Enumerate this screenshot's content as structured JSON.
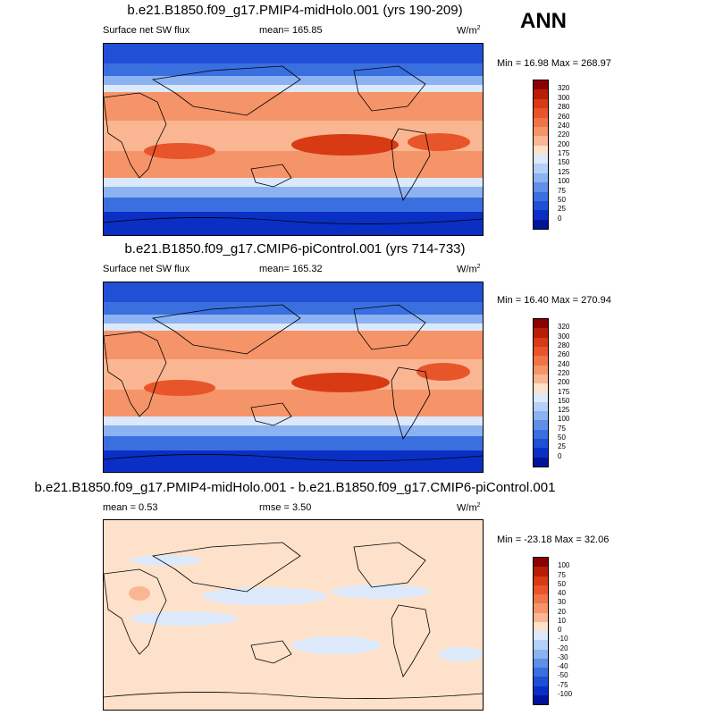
{
  "season": "ANN",
  "units_main": "W/m",
  "units_sup": "2",
  "panels": [
    {
      "title": "b.e21.B1850.f09_g17.PMIP4-midHolo.001 (yrs 190-209)",
      "left_label": "Surface net SW flux",
      "center_label": "mean= 165.85",
      "minmax": "Min =  16.98 Max = 268.97"
    },
    {
      "title": "b.e21.B1850.f09_g17.CMIP6-piControl.001 (yrs 714-733)",
      "left_label": "Surface net SW flux",
      "center_label": "mean= 165.32",
      "minmax": "Min =  16.40 Max = 270.94"
    },
    {
      "title": "b.e21.B1850.f09_g17.PMIP4-midHolo.001 - b.e21.B1850.f09_g17.CMIP6-piControl.001",
      "left_label": "mean =    0.53",
      "center_label": "rmse =    3.50",
      "minmax": "Min = -23.18 Max =  32.06"
    }
  ],
  "chart_data": [
    {
      "type": "heatmap",
      "title": "b.e21.B1850.f09_g17.PMIP4-midHolo.001 (yrs 190-209)",
      "variable": "Surface net SW flux",
      "units": "W/m2",
      "mean": 165.85,
      "min": 16.98,
      "max": 268.97,
      "colorbar_levels": [
        "320",
        "300",
        "280",
        "260",
        "240",
        "220",
        "200",
        "175",
        "150",
        "125",
        "100",
        "75",
        "50",
        "25",
        "0"
      ],
      "colorbar_colors": [
        "#8b0000",
        "#b81d05",
        "#d83a13",
        "#e8552a",
        "#ef7448",
        "#f59468",
        "#fab692",
        "#fde1cb",
        "#dbe9fb",
        "#b5d0f8",
        "#8cb2f2",
        "#5f8fe8",
        "#3a6fe0",
        "#1f4fd5",
        "#0a2fc4",
        "#00149a"
      ]
    },
    {
      "type": "heatmap",
      "title": "b.e21.B1850.f09_g17.CMIP6-piControl.001 (yrs 714-733)",
      "variable": "Surface net SW flux",
      "units": "W/m2",
      "mean": 165.32,
      "min": 16.4,
      "max": 270.94,
      "colorbar_levels": [
        "320",
        "300",
        "280",
        "260",
        "240",
        "220",
        "200",
        "175",
        "150",
        "125",
        "100",
        "75",
        "50",
        "25",
        "0"
      ],
      "colorbar_colors": [
        "#8b0000",
        "#b81d05",
        "#d83a13",
        "#e8552a",
        "#ef7448",
        "#f59468",
        "#fab692",
        "#fde1cb",
        "#dbe9fb",
        "#b5d0f8",
        "#8cb2f2",
        "#5f8fe8",
        "#3a6fe0",
        "#1f4fd5",
        "#0a2fc4",
        "#00149a"
      ]
    },
    {
      "type": "heatmap",
      "title": "b.e21.B1850.f09_g17.PMIP4-midHolo.001 - b.e21.B1850.f09_g17.CMIP6-piControl.001",
      "units": "W/m2",
      "mean": 0.53,
      "rmse": 3.5,
      "min": -23.18,
      "max": 32.06,
      "colorbar_levels": [
        "100",
        "75",
        "50",
        "40",
        "30",
        "20",
        "10",
        "0",
        "-10",
        "-20",
        "-30",
        "-40",
        "-50",
        "-75",
        "-100"
      ],
      "colorbar_colors": [
        "#8b0000",
        "#b81d05",
        "#d83a13",
        "#e8552a",
        "#ef7448",
        "#f59468",
        "#fab692",
        "#fde1cb",
        "#dbe9fb",
        "#b5d0f8",
        "#8cb2f2",
        "#5f8fe8",
        "#3a6fe0",
        "#1f4fd5",
        "#0a2fc4",
        "#00149a"
      ]
    }
  ]
}
